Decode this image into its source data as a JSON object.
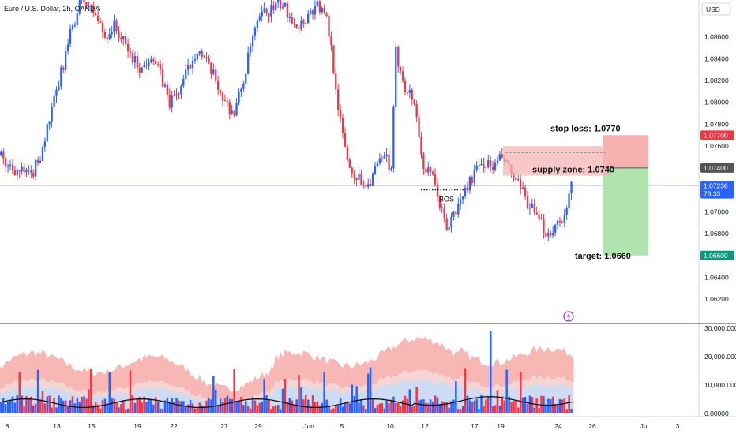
{
  "header": {
    "symbol_title": "Euro / U.S. Dollar, 2h, OANDA",
    "currency": "USD"
  },
  "price_axis": {
    "ticks": [
      "1.08600",
      "1.08400",
      "1.08200",
      "1.08000",
      "1.07800",
      "1.07600",
      "1.07000",
      "1.06800",
      "1.06400",
      "1.06200"
    ],
    "tags": {
      "stop": "1.07700",
      "entry": "1.07400",
      "current_price": "1.07236",
      "countdown": "73:33",
      "target": "1.06600"
    }
  },
  "volume_axis": {
    "ticks": [
      "30,000.00000",
      "20,000.00000",
      "10,000.00000",
      "0.00000"
    ]
  },
  "time_axis": {
    "labels": [
      "8",
      "13",
      "15",
      "19",
      "22",
      "27",
      "29",
      "Jun",
      "5",
      "10",
      "12",
      "17",
      "19",
      "24",
      "26",
      "Jul",
      "3"
    ]
  },
  "annotations": {
    "stop_loss": "stop loss: 1.0770",
    "supply_zone": "supply zone: 1.0740",
    "target": "target: 1.0660",
    "bos": "BOS"
  },
  "colors": {
    "up": "#2962ff",
    "down": "#f23645",
    "stop_zone": "#f7a9a9",
    "target_zone": "#a7e0a5",
    "supply_box": "#f5b4b4",
    "current_tag": "#2962ff",
    "stop_tag": "#f23645",
    "target_tag": "#089981",
    "entry_tag": "#555555"
  },
  "icons": {
    "replay": "lightning-icon"
  },
  "chart_data": {
    "type": "candlestick",
    "title": "Euro / U.S. Dollar, 2h, OANDA",
    "x_range": [
      "May 7",
      "Jul 4"
    ],
    "ylim": [
      1.0605,
      1.089
    ],
    "price_path": [
      [
        0,
        1.0765
      ],
      [
        4,
        1.0745
      ],
      [
        10,
        1.0738
      ],
      [
        16,
        1.0732
      ],
      [
        20,
        1.0752
      ],
      [
        26,
        1.08
      ],
      [
        30,
        1.0835
      ],
      [
        34,
        1.087
      ],
      [
        38,
        1.0895
      ],
      [
        44,
        1.088
      ],
      [
        48,
        1.086
      ],
      [
        52,
        1.087
      ],
      [
        56,
        1.0855
      ],
      [
        60,
        1.084
      ],
      [
        64,
        1.083
      ],
      [
        68,
        1.0845
      ],
      [
        72,
        1.0825
      ],
      [
        76,
        1.08
      ],
      [
        80,
        1.081
      ],
      [
        84,
        1.083
      ],
      [
        88,
        1.085
      ],
      [
        92,
        1.0835
      ],
      [
        96,
        1.082
      ],
      [
        100,
        1.08
      ],
      [
        104,
        1.079
      ],
      [
        108,
        1.082
      ],
      [
        112,
        1.086
      ],
      [
        116,
        1.088
      ],
      [
        120,
        1.0885
      ],
      [
        124,
        1.089
      ],
      [
        128,
        1.088
      ],
      [
        132,
        1.087
      ],
      [
        136,
        1.088
      ],
      [
        140,
        1.089
      ],
      [
        144,
        1.0875
      ],
      [
        146,
        1.085
      ],
      [
        150,
        1.078
      ],
      [
        154,
        1.074
      ],
      [
        158,
        1.073
      ],
      [
        162,
        1.0725
      ],
      [
        166,
        1.0742
      ],
      [
        170,
        1.075
      ],
      [
        172,
        1.0735
      ],
      [
        174,
        1.0845
      ],
      [
        176,
        1.083
      ],
      [
        178,
        1.0815
      ],
      [
        182,
        1.08
      ],
      [
        186,
        1.074
      ],
      [
        190,
        1.073
      ],
      [
        194,
        1.07
      ],
      [
        196,
        1.0685
      ],
      [
        200,
        1.07
      ],
      [
        204,
        1.072
      ],
      [
        208,
        1.0735
      ],
      [
        212,
        1.0745
      ],
      [
        216,
        1.074
      ],
      [
        220,
        1.075
      ],
      [
        224,
        1.0735
      ],
      [
        228,
        1.072
      ],
      [
        232,
        1.0705
      ],
      [
        236,
        1.069
      ],
      [
        240,
        1.068
      ],
      [
        244,
        1.069
      ],
      [
        248,
        1.07
      ],
      [
        250,
        1.0724
      ]
    ],
    "levels": {
      "stop_loss": 1.077,
      "entry": 1.074,
      "target": 1.066,
      "current": 1.07236
    },
    "supply_zone": {
      "top": 1.076,
      "bottom": 1.0733
    },
    "bos_level": 1.072,
    "volume_range": [
      0,
      30000
    ],
    "volume_yticks": [
      30000,
      20000,
      10000,
      0
    ],
    "series": [
      {
        "name": "Volume",
        "type": "bar"
      }
    ]
  }
}
